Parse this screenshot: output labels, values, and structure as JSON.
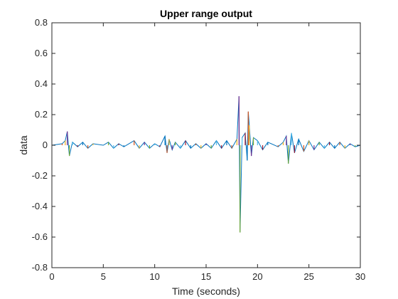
{
  "chart_data": {
    "type": "line",
    "title": "Upper range output",
    "xlabel": "Time (seconds)",
    "ylabel": "data",
    "xlim": [
      0,
      30
    ],
    "ylim": [
      -0.8,
      0.8
    ],
    "x_ticks": [
      0,
      5,
      10,
      15,
      20,
      25,
      30
    ],
    "y_ticks": [
      -0.8,
      -0.6,
      -0.4,
      -0.2,
      0,
      0.2,
      0.4,
      0.6,
      0.8
    ],
    "x_tick_labels": [
      "0",
      "5",
      "10",
      "15",
      "20",
      "25",
      "30"
    ],
    "y_tick_labels": [
      "-0.8",
      "-0.6",
      "-0.4",
      "-0.2",
      "0",
      "0.2",
      "0.4",
      "0.6",
      "0.8"
    ],
    "grid": false,
    "legend": "none",
    "colors": [
      "#0072BD",
      "#D95319",
      "#EDB120",
      "#7E2F8E",
      "#77AC30",
      "#4DBEEE",
      "#A2142F"
    ],
    "series": [
      {
        "x": [
          0,
          1.0,
          1.3,
          1.5,
          1.7,
          2.0,
          2.5,
          3.0,
          3.5,
          4.0,
          5.0,
          5.5,
          6.0,
          6.5,
          7.0,
          8.0,
          8.5,
          9.0,
          9.5,
          10.0,
          10.5,
          11.0,
          11.2,
          11.4,
          11.7,
          12.0,
          12.5,
          13.0,
          13.5,
          14.0,
          14.5,
          15.0,
          15.5,
          16.0,
          16.5,
          17.0,
          17.5,
          18.0,
          18.2,
          18.3,
          18.5,
          18.8,
          19.0,
          19.1,
          19.2,
          19.4,
          19.6,
          20.0,
          20.5,
          21.0,
          22.0,
          22.5,
          22.8,
          23.0,
          23.3,
          23.6,
          24.0,
          24.5,
          25.0,
          25.5,
          26.0,
          26.5,
          27.0,
          27.5,
          28.0,
          28.5,
          29.0,
          29.5,
          30.0
        ],
        "y": [
          0.0,
          0.01,
          0.03,
          0.09,
          -0.07,
          0.02,
          -0.01,
          0.02,
          -0.02,
          0.01,
          0.0,
          0.02,
          -0.02,
          0.01,
          -0.01,
          0.03,
          -0.02,
          0.02,
          -0.02,
          0.01,
          -0.01,
          0.06,
          -0.05,
          0.04,
          -0.03,
          0.02,
          -0.02,
          0.03,
          -0.02,
          0.01,
          -0.02,
          0.01,
          -0.02,
          0.03,
          -0.02,
          0.03,
          -0.02,
          0.04,
          0.32,
          -0.57,
          0.05,
          0.08,
          -0.1,
          0.22,
          0.13,
          -0.07,
          0.05,
          0.03,
          -0.03,
          0.02,
          -0.01,
          0.02,
          0.06,
          -0.12,
          0.08,
          -0.05,
          0.04,
          -0.04,
          0.03,
          -0.03,
          0.02,
          -0.02,
          0.02,
          -0.02,
          0.02,
          -0.02,
          0.01,
          -0.01,
          0.0
        ]
      }
    ]
  }
}
